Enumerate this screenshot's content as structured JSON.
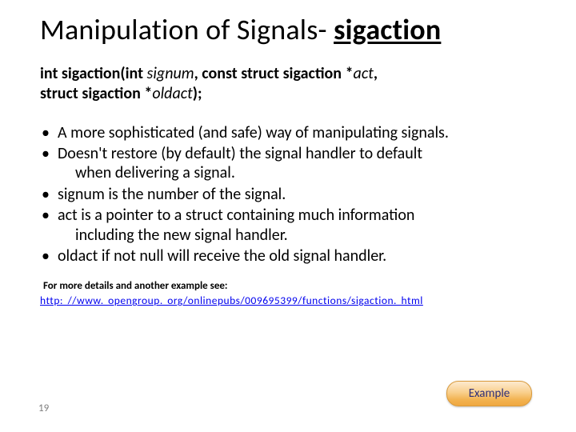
{
  "title": {
    "pre": "Manipulation of Signals- ",
    "kw": "sigaction"
  },
  "signature": {
    "line1_parts": [
      {
        "t": "int sigaction(int ",
        "b": true
      },
      {
        "t": "signum",
        "i": true
      },
      {
        "t": ", const struct sigaction *",
        "b": true
      },
      {
        "t": "act",
        "i": true
      },
      {
        "t": ",",
        "b": true
      }
    ],
    "line2_parts": [
      {
        "t": "struct sigaction *",
        "b": true
      },
      {
        "t": "oldact",
        "i": true
      },
      {
        "t": ");",
        "b": true
      }
    ]
  },
  "bullets": [
    {
      "text": "A more sophisticated (and safe) way of manipulating signals."
    },
    {
      "text": "Doesn't restore (by default) the signal handler to default",
      "sub": "when delivering a signal."
    },
    {
      "text": "signum is the number of the signal."
    },
    {
      "text": "act is a pointer to a struct containing much information",
      "sub": "including the new signal handler."
    },
    {
      "text": "oldact if not null will receive the old signal handler."
    }
  ],
  "note": "For more details and another example see:",
  "link_text": "http: //www. opengroup. org/onlinepubs/009695399/functions/sigaction. html",
  "example_label": "Example",
  "page_number": "19",
  "colors": {
    "link": "#0000ee",
    "page_num": "#7f7f7f",
    "btn_text": "#2f2f78",
    "btn_grad_top": "#fdeacf",
    "btn_grad_bottom": "#f0a840"
  }
}
